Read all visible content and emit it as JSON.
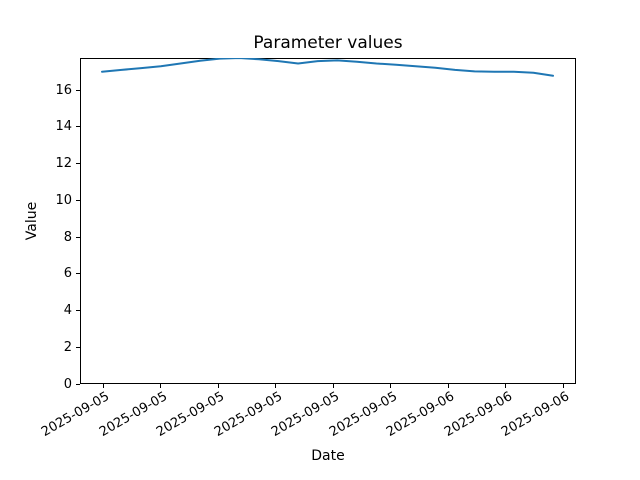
{
  "figure": {
    "background_color": "#ffffff",
    "spine_color": "#000000"
  },
  "chart_data": {
    "type": "line",
    "title": "Parameter values",
    "xlabel": "Date",
    "ylabel": "Value",
    "ylim": [
      0,
      17.75
    ],
    "yticks": [
      0,
      2,
      4,
      6,
      8,
      10,
      12,
      14,
      16
    ],
    "grid": false,
    "legend": null,
    "xticks": {
      "labels": [
        "2025-09-05",
        "2025-09-05",
        "2025-09-05",
        "2025-09-05",
        "2025-09-05",
        "2025-09-05",
        "2025-09-06",
        "2025-09-06",
        "2025-09-06"
      ],
      "rotation_deg": 30,
      "first_frac": 0.0464,
      "last_frac": 0.9738
    },
    "series": [
      {
        "name": "parameter-values-line",
        "color": "#1f77b4",
        "line_width": 2,
        "x_frac_start": 0.0444,
        "x_frac_end": 0.9536,
        "values": [
          17.0,
          17.1,
          17.2,
          17.3,
          17.45,
          17.6,
          17.72,
          17.75,
          17.68,
          17.58,
          17.45,
          17.58,
          17.62,
          17.55,
          17.45,
          17.38,
          17.3,
          17.22,
          17.1,
          17.02,
          17.0,
          17.0,
          16.95,
          16.78
        ]
      }
    ]
  }
}
